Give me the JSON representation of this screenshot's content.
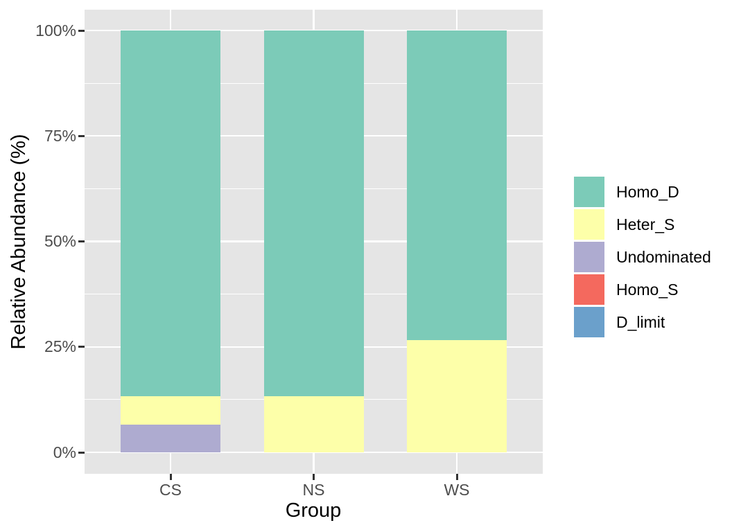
{
  "chart_data": {
    "type": "bar",
    "stacked": true,
    "title": "",
    "xlabel": "Group",
    "ylabel": "Relative Abundance (%)",
    "categories": [
      "CS",
      "NS",
      "WS"
    ],
    "series": [
      {
        "name": "Homo_D",
        "color": "#7CCBB8",
        "values": [
          86.7,
          86.7,
          73.4
        ]
      },
      {
        "name": "Heter_S",
        "color": "#FDFFA9",
        "values": [
          6.7,
          13.3,
          26.6
        ]
      },
      {
        "name": "Undominated",
        "color": "#AEABD0",
        "values": [
          6.6,
          0,
          0
        ]
      },
      {
        "name": "Homo_S",
        "color": "#F4695E",
        "values": [
          0,
          0,
          0
        ]
      },
      {
        "name": "D_limit",
        "color": "#6BA0CB",
        "values": [
          0,
          0,
          0
        ]
      }
    ],
    "ylim": [
      0,
      100
    ],
    "y_major_ticks": [
      0,
      25,
      50,
      75,
      100
    ],
    "y_tick_labels": [
      "0%",
      "25%",
      "50%",
      "75%",
      "100%"
    ],
    "y_minor_ticks": [
      12.5,
      37.5,
      62.5,
      87.5
    ],
    "grid": true,
    "legend_position": "right"
  },
  "legend": {
    "items": [
      {
        "label": "Homo_D",
        "color": "#7CCBB8"
      },
      {
        "label": "Heter_S",
        "color": "#FDFFA9"
      },
      {
        "label": "Undominated",
        "color": "#AEABD0"
      },
      {
        "label": "Homo_S",
        "color": "#F4695E"
      },
      {
        "label": "D_limit",
        "color": "#6BA0CB"
      }
    ]
  },
  "colors": {
    "panel_background": "#E5E5E5",
    "gridline": "#FFFFFF",
    "tick_text": "#4D4D4D",
    "axis_title_text": "#000000",
    "tick_mark": "#333333"
  }
}
